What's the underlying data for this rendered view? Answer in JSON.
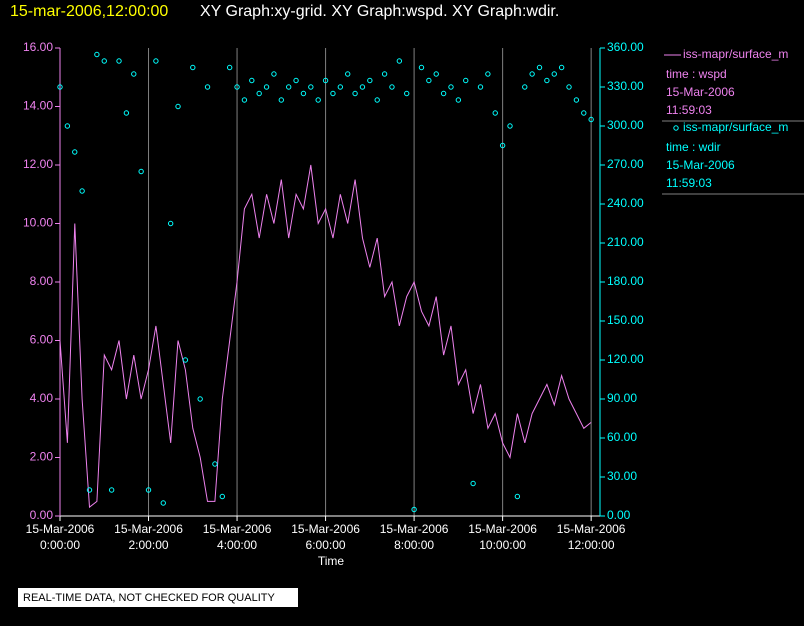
{
  "chart_data": {
    "type": "line",
    "title_time": "15-mar-2006,12:00:00",
    "title": "XY Graph:xy-grid.  XY Graph:wspd.  XY Graph:wdir.",
    "xlabel": "Time",
    "footer": "REAL-TIME DATA, NOT CHECKED FOR QUALITY",
    "grid": true,
    "xlim": [
      "2006-03-15T00:00:00",
      "2006-03-15T12:12:00"
    ],
    "xticks": [
      {
        "value": "2006-03-15T00:00:00",
        "label": "15-Mar-2006 0:00:00"
      },
      {
        "value": "2006-03-15T02:00:00",
        "label": "15-Mar-2006 2:00:00"
      },
      {
        "value": "2006-03-15T04:00:00",
        "label": "15-Mar-2006 4:00:00"
      },
      {
        "value": "2006-03-15T06:00:00",
        "label": "15-Mar-2006 6:00:00"
      },
      {
        "value": "2006-03-15T08:00:00",
        "label": "15-Mar-2006 8:00:00"
      },
      {
        "value": "2006-03-15T10:00:00",
        "label": "15-Mar-2006 10:00:00"
      },
      {
        "value": "2006-03-15T12:00:00",
        "label": "15-Mar-2006 12:00:00"
      }
    ],
    "ylim": [
      0,
      16
    ],
    "yticks": [
      {
        "value": 0,
        "label": "0.00"
      },
      {
        "value": 2,
        "label": "2.00"
      },
      {
        "value": 4,
        "label": "4.00"
      },
      {
        "value": 6,
        "label": "6.00"
      },
      {
        "value": 8,
        "label": "8.00"
      },
      {
        "value": 10,
        "label": "10.00"
      },
      {
        "value": 12,
        "label": "12.00"
      },
      {
        "value": 14,
        "label": "14.00"
      },
      {
        "value": 16,
        "label": "16.00"
      }
    ],
    "y2lim": [
      0,
      360
    ],
    "y2ticks": [
      {
        "value": 0,
        "label": "0.00"
      },
      {
        "value": 30,
        "label": "30.00"
      },
      {
        "value": 60,
        "label": "60.00"
      },
      {
        "value": 90,
        "label": "90.00"
      },
      {
        "value": 120,
        "label": "120.00"
      },
      {
        "value": 150,
        "label": "150.00"
      },
      {
        "value": 180,
        "label": "180.00"
      },
      {
        "value": 210,
        "label": "210.00"
      },
      {
        "value": 240,
        "label": "240.00"
      },
      {
        "value": 270,
        "label": "270.00"
      },
      {
        "value": 300,
        "label": "300.00"
      },
      {
        "value": 330,
        "label": "330.00"
      },
      {
        "value": 360,
        "label": "360.00"
      }
    ],
    "x": [
      "2006-03-15T00:00:00",
      "2006-03-15T00:10:00",
      "2006-03-15T00:20:00",
      "2006-03-15T00:30:00",
      "2006-03-15T00:40:00",
      "2006-03-15T00:50:00",
      "2006-03-15T01:00:00",
      "2006-03-15T01:10:00",
      "2006-03-15T01:20:00",
      "2006-03-15T01:30:00",
      "2006-03-15T01:40:00",
      "2006-03-15T01:50:00",
      "2006-03-15T02:00:00",
      "2006-03-15T02:10:00",
      "2006-03-15T02:20:00",
      "2006-03-15T02:30:00",
      "2006-03-15T02:40:00",
      "2006-03-15T02:50:00",
      "2006-03-15T03:00:00",
      "2006-03-15T03:10:00",
      "2006-03-15T03:20:00",
      "2006-03-15T03:30:00",
      "2006-03-15T03:40:00",
      "2006-03-15T03:50:00",
      "2006-03-15T04:00:00",
      "2006-03-15T04:10:00",
      "2006-03-15T04:20:00",
      "2006-03-15T04:30:00",
      "2006-03-15T04:40:00",
      "2006-03-15T04:50:00",
      "2006-03-15T05:00:00",
      "2006-03-15T05:10:00",
      "2006-03-15T05:20:00",
      "2006-03-15T05:30:00",
      "2006-03-15T05:40:00",
      "2006-03-15T05:50:00",
      "2006-03-15T06:00:00",
      "2006-03-15T06:10:00",
      "2006-03-15T06:20:00",
      "2006-03-15T06:30:00",
      "2006-03-15T06:40:00",
      "2006-03-15T06:50:00",
      "2006-03-15T07:00:00",
      "2006-03-15T07:10:00",
      "2006-03-15T07:20:00",
      "2006-03-15T07:30:00",
      "2006-03-15T07:40:00",
      "2006-03-15T07:50:00",
      "2006-03-15T08:00:00",
      "2006-03-15T08:10:00",
      "2006-03-15T08:20:00",
      "2006-03-15T08:30:00",
      "2006-03-15T08:40:00",
      "2006-03-15T08:50:00",
      "2006-03-15T09:00:00",
      "2006-03-15T09:10:00",
      "2006-03-15T09:20:00",
      "2006-03-15T09:30:00",
      "2006-03-15T09:40:00",
      "2006-03-15T09:50:00",
      "2006-03-15T10:00:00",
      "2006-03-15T10:10:00",
      "2006-03-15T10:20:00",
      "2006-03-15T10:30:00",
      "2006-03-15T10:40:00",
      "2006-03-15T10:50:00",
      "2006-03-15T11:00:00",
      "2006-03-15T11:10:00",
      "2006-03-15T11:20:00",
      "2006-03-15T11:30:00",
      "2006-03-15T11:40:00",
      "2006-03-15T11:50:00",
      "2006-03-15T12:00:00"
    ],
    "series": [
      {
        "name": "iss-mapr/surface_m",
        "type": "line",
        "color": "#ee82ee",
        "axis": "y",
        "legend": [
          "time : wspd",
          "15-Mar-2006",
          "11:59:03"
        ],
        "values": [
          6,
          2.5,
          10,
          4,
          0.3,
          0.5,
          5.5,
          5,
          6,
          4,
          5.5,
          4,
          5,
          6.5,
          4.5,
          2.5,
          6,
          5,
          3,
          2,
          0.5,
          0.5,
          4,
          6,
          8,
          10.5,
          11,
          9.5,
          11,
          10,
          11.5,
          9.5,
          11,
          10.5,
          12,
          10,
          10.5,
          9.5,
          11,
          10,
          11.5,
          9.5,
          8.5,
          9.5,
          7.5,
          8,
          6.5,
          7.5,
          8,
          7,
          6.5,
          7.5,
          5.5,
          6.5,
          4.5,
          5,
          3.5,
          4.5,
          3,
          3.5,
          2.5,
          2,
          3.5,
          2.5,
          3.5,
          4,
          4.5,
          3.8,
          4.8,
          4,
          3.5,
          3,
          3.2
        ]
      },
      {
        "name": "iss-mapr/surface_m",
        "type": "scatter",
        "color": "#00ffff",
        "axis": "y2",
        "legend": [
          "time : wdir",
          "15-Mar-2006",
          "11:59:03"
        ],
        "values": [
          330,
          300,
          280,
          250,
          20,
          355,
          350,
          20,
          350,
          310,
          340,
          265,
          20,
          350,
          10,
          225,
          315,
          120,
          345,
          90,
          330,
          40,
          15,
          345,
          330,
          320,
          335,
          325,
          330,
          340,
          320,
          330,
          335,
          325,
          330,
          320,
          335,
          325,
          330,
          340,
          325,
          330,
          335,
          320,
          340,
          330,
          350,
          325,
          5,
          345,
          335,
          340,
          325,
          330,
          320,
          335,
          25,
          330,
          340,
          310,
          285,
          300,
          15,
          330,
          340,
          345,
          335,
          340,
          345,
          330,
          320,
          310,
          305
        ]
      }
    ]
  }
}
